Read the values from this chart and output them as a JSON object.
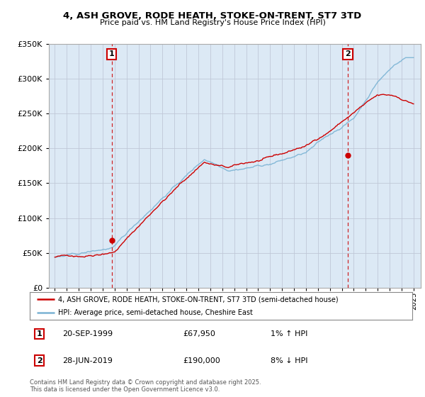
{
  "title": "4, ASH GROVE, RODE HEATH, STOKE-ON-TRENT, ST7 3TD",
  "subtitle": "Price paid vs. HM Land Registry's House Price Index (HPI)",
  "ylim": [
    0,
    350000
  ],
  "xlim_start": 1995,
  "xlim_end": 2025,
  "sale1_date": 1999.75,
  "sale1_price": 67950,
  "sale1_label": "1",
  "sale2_date": 2019.5,
  "sale2_price": 190000,
  "sale2_label": "2",
  "legend_line1": "4, ASH GROVE, RODE HEATH, STOKE-ON-TRENT, ST7 3TD (semi-detached house)",
  "legend_line2": "HPI: Average price, semi-detached house, Cheshire East",
  "annotation1_date": "20-SEP-1999",
  "annotation1_price": "£67,950",
  "annotation1_hpi": "1% ↑ HPI",
  "annotation2_date": "28-JUN-2019",
  "annotation2_price": "£190,000",
  "annotation2_hpi": "8% ↓ HPI",
  "copyright_text": "Contains HM Land Registry data © Crown copyright and database right 2025.\nThis data is licensed under the Open Government Licence v3.0.",
  "hpi_color": "#7ab3d4",
  "price_color": "#cc0000",
  "marker_color": "#cc0000",
  "dashed_color": "#cc0000",
  "background_color": "#ffffff",
  "plot_bg_color": "#dce9f5"
}
